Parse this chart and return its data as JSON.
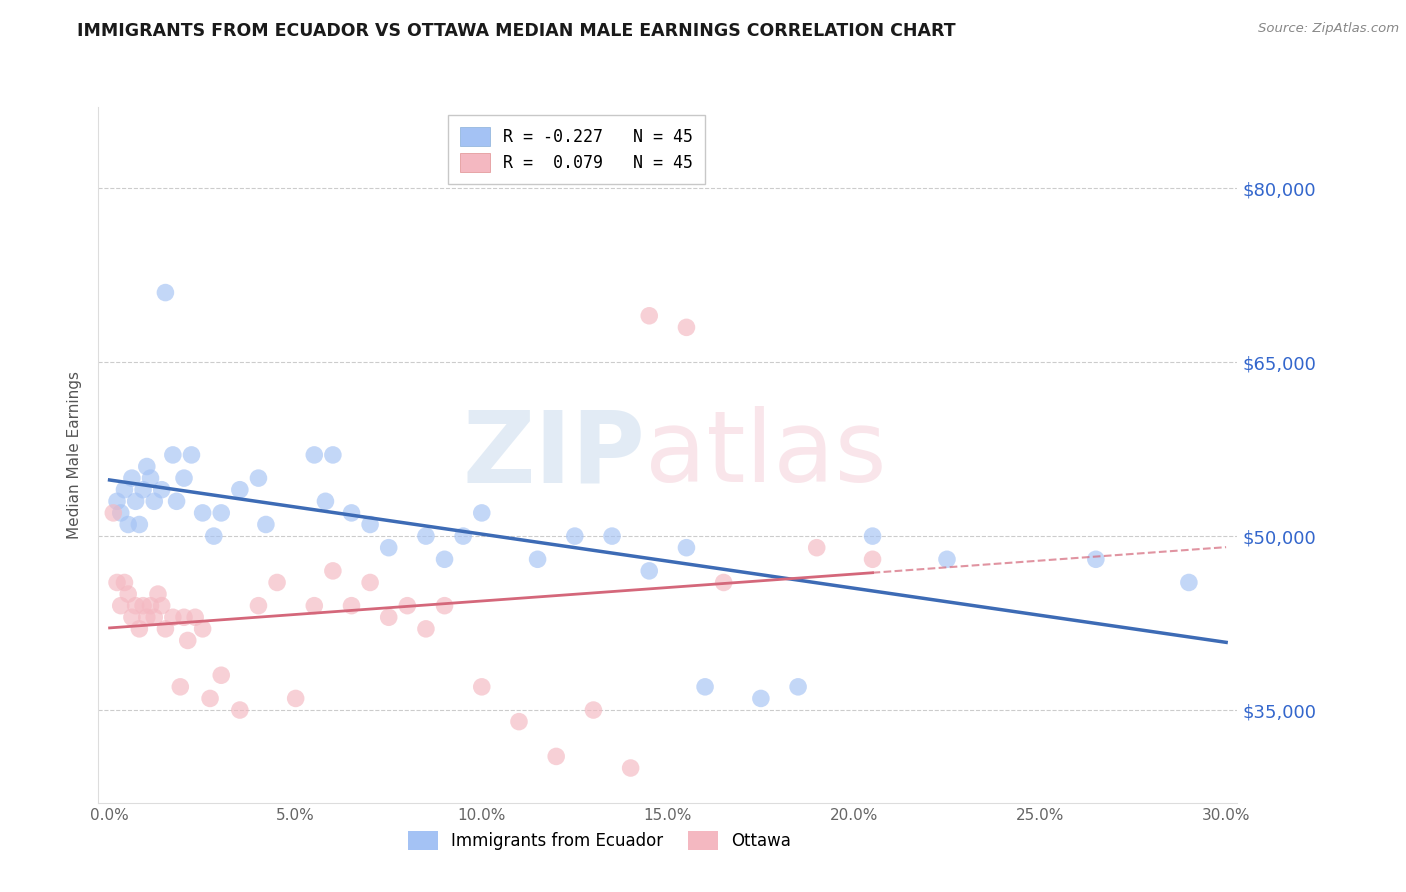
{
  "title": "IMMIGRANTS FROM ECUADOR VS OTTAWA MEDIAN MALE EARNINGS CORRELATION CHART",
  "source": "Source: ZipAtlas.com",
  "ylabel": "Median Male Earnings",
  "xlabel_ticks": [
    "0.0%",
    "5.0%",
    "10.0%",
    "15.0%",
    "20.0%",
    "25.0%",
    "30.0%"
  ],
  "xlabel_vals": [
    0.0,
    5.0,
    10.0,
    15.0,
    20.0,
    25.0,
    30.0
  ],
  "xlim": [
    -0.3,
    30.3
  ],
  "ylim": [
    27000,
    87000
  ],
  "yticks": [
    35000,
    50000,
    65000,
    80000
  ],
  "ytick_labels": [
    "$35,000",
    "$50,000",
    "$65,000",
    "$80,000"
  ],
  "r_blue": -0.227,
  "r_pink": 0.079,
  "n_blue": 45,
  "n_pink": 45,
  "blue_color": "#a4c2f4",
  "pink_color": "#f4b8c1",
  "line_blue": "#3d6bb5",
  "line_pink": "#d4677a",
  "blue_x": [
    0.2,
    0.3,
    0.4,
    0.5,
    0.6,
    0.7,
    0.8,
    0.9,
    1.0,
    1.1,
    1.2,
    1.4,
    1.5,
    1.7,
    1.8,
    2.0,
    2.2,
    2.5,
    2.8,
    3.0,
    3.5,
    4.0,
    4.2,
    5.5,
    5.8,
    6.0,
    6.5,
    7.0,
    7.5,
    8.5,
    9.0,
    9.5,
    10.0,
    11.5,
    12.5,
    13.5,
    14.5,
    15.5,
    16.0,
    17.5,
    18.5,
    20.5,
    22.5,
    26.5,
    29.0
  ],
  "blue_y": [
    53000,
    52000,
    54000,
    51000,
    55000,
    53000,
    51000,
    54000,
    56000,
    55000,
    53000,
    54000,
    71000,
    57000,
    53000,
    55000,
    57000,
    52000,
    50000,
    52000,
    54000,
    55000,
    51000,
    57000,
    53000,
    57000,
    52000,
    51000,
    49000,
    50000,
    48000,
    50000,
    52000,
    48000,
    50000,
    50000,
    47000,
    49000,
    37000,
    36000,
    37000,
    50000,
    48000,
    48000,
    46000
  ],
  "pink_x": [
    0.1,
    0.2,
    0.3,
    0.4,
    0.5,
    0.6,
    0.7,
    0.8,
    0.9,
    1.0,
    1.1,
    1.2,
    1.3,
    1.4,
    1.5,
    1.7,
    1.9,
    2.0,
    2.1,
    2.3,
    2.5,
    2.7,
    3.0,
    3.5,
    4.0,
    4.5,
    5.0,
    5.5,
    6.0,
    6.5,
    7.0,
    7.5,
    8.0,
    8.5,
    9.0,
    10.0,
    11.0,
    12.0,
    13.0,
    14.0,
    14.5,
    15.5,
    16.5,
    19.0,
    20.5
  ],
  "pink_y": [
    52000,
    46000,
    44000,
    46000,
    45000,
    43000,
    44000,
    42000,
    44000,
    43000,
    44000,
    43000,
    45000,
    44000,
    42000,
    43000,
    37000,
    43000,
    41000,
    43000,
    42000,
    36000,
    38000,
    35000,
    44000,
    46000,
    36000,
    44000,
    47000,
    44000,
    46000,
    43000,
    44000,
    42000,
    44000,
    37000,
    34000,
    31000,
    35000,
    30000,
    69000,
    68000,
    46000,
    49000,
    48000
  ],
  "legend_label_blue": "R = -0.227   N = 45",
  "legend_label_pink": "R =  0.079   N = 45",
  "bottom_legend_blue": "Immigrants from Ecuador",
  "bottom_legend_pink": "Ottawa"
}
